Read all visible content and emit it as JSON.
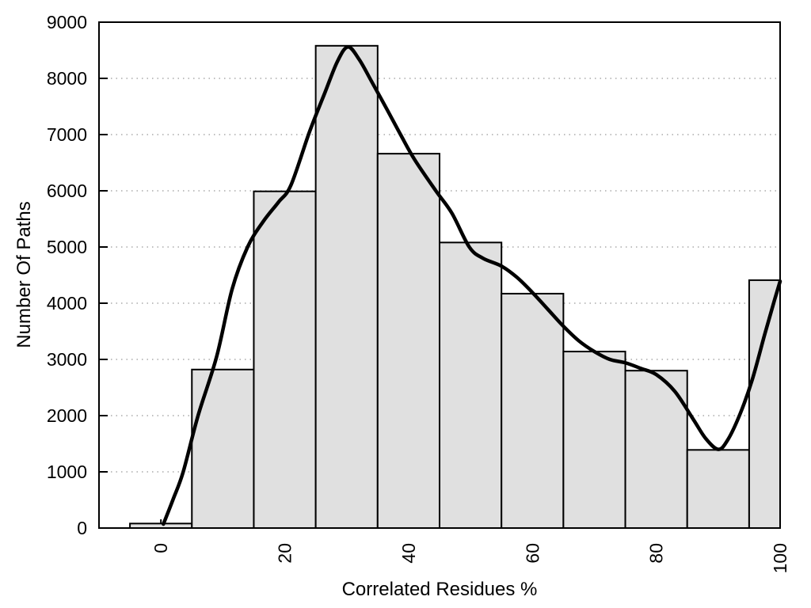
{
  "page": {
    "background": "#ffffff"
  },
  "chart_data": {
    "type": "bar",
    "subtype": "histogram-with-smooth-curve",
    "title": "",
    "xlabel": "Correlated Residues %",
    "ylabel": "Number Of Paths",
    "xlim": [
      -10,
      100
    ],
    "ylim": [
      0,
      9000
    ],
    "xticks": [
      0,
      20,
      40,
      60,
      80,
      100
    ],
    "yticks": [
      0,
      1000,
      2000,
      3000,
      4000,
      5000,
      6000,
      7000,
      8000,
      9000
    ],
    "xtick_label_rotation_deg": -90,
    "grid": "horizontal dotted lines at each y tick, hidden behind bars",
    "legend": "none",
    "bin_width": 10,
    "categories": [
      0,
      10,
      20,
      30,
      40,
      50,
      60,
      70,
      80,
      90,
      100
    ],
    "values": [
      80,
      2820,
      5990,
      8580,
      6660,
      5080,
      4170,
      3140,
      2800,
      1390,
      4410
    ],
    "series_note": "bars are histogram bins centered on category value; first and last bins clipped to x-axis range; black smooth density curve overlaid",
    "curve_points": [
      [
        0.4,
        70
      ],
      [
        2,
        520
      ],
      [
        3.6,
        1000
      ],
      [
        6,
        2000
      ],
      [
        9,
        3050
      ],
      [
        11.5,
        4250
      ],
      [
        14,
        5000
      ],
      [
        16.5,
        5450
      ],
      [
        19,
        5800
      ],
      [
        21,
        6100
      ],
      [
        24,
        7050
      ],
      [
        26.5,
        7750
      ],
      [
        28.5,
        8300
      ],
      [
        30.2,
        8560
      ],
      [
        32,
        8340
      ],
      [
        34,
        7950
      ],
      [
        36.5,
        7450
      ],
      [
        38.7,
        7000
      ],
      [
        41,
        6550
      ],
      [
        44.4,
        6000
      ],
      [
        47,
        5600
      ],
      [
        49.8,
        5000
      ],
      [
        52,
        4800
      ],
      [
        55,
        4660
      ],
      [
        57.5,
        4460
      ],
      [
        60,
        4190
      ],
      [
        62.5,
        3890
      ],
      [
        65,
        3590
      ],
      [
        67.5,
        3330
      ],
      [
        70,
        3140
      ],
      [
        72.5,
        3000
      ],
      [
        75,
        2940
      ],
      [
        77.5,
        2840
      ],
      [
        80,
        2730
      ],
      [
        83,
        2430
      ],
      [
        86,
        1930
      ],
      [
        88,
        1590
      ],
      [
        90,
        1400
      ],
      [
        91.5,
        1560
      ],
      [
        93.5,
        2020
      ],
      [
        95.5,
        2640
      ],
      [
        97.5,
        3440
      ],
      [
        99,
        4020
      ],
      [
        100,
        4390
      ]
    ],
    "colors": {
      "bar_fill": "#e0e0e0",
      "bar_border": "#000000",
      "curve": "#000000",
      "grid": "#aaaaaa",
      "axis": "#000000",
      "text": "#000000"
    }
  }
}
